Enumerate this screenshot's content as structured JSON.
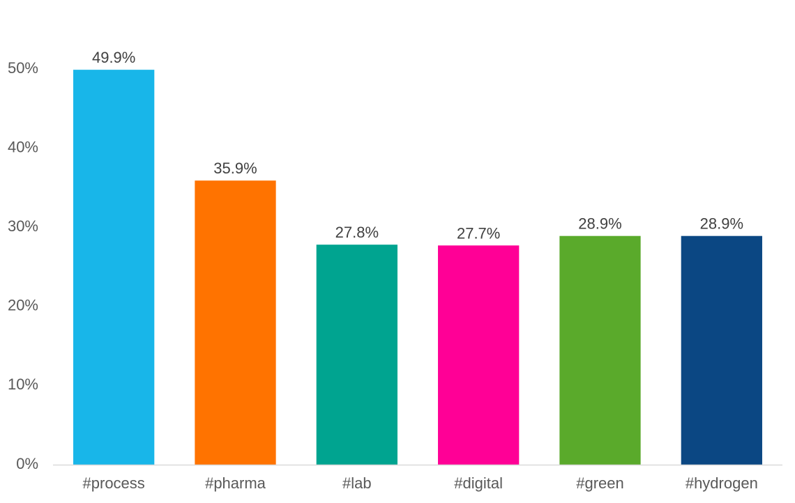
{
  "chart_data": {
    "type": "bar",
    "title": "",
    "xlabel": "",
    "ylabel": "",
    "categories": [
      "#process",
      "#pharma",
      "#lab",
      "#digital",
      "#green",
      "#hydrogen"
    ],
    "values": [
      49.9,
      35.9,
      27.8,
      27.7,
      28.9,
      28.9
    ],
    "data_labels": [
      "49.9%",
      "35.9%",
      "27.8%",
      "27.7%",
      "28.9%",
      "28.9%"
    ],
    "colors": [
      "#18b6e9",
      "#ff7300",
      "#00a490",
      "#ff0096",
      "#5aaa2b",
      "#0b4783"
    ],
    "ylim": [
      0,
      50
    ],
    "yticks": [
      0,
      10,
      20,
      30,
      40,
      50
    ],
    "ytick_labels": [
      "0%",
      "10%",
      "20%",
      "30%",
      "40%",
      "50%"
    ],
    "grid": false,
    "legend": "none",
    "axis_color": "#d9d9d9"
  }
}
